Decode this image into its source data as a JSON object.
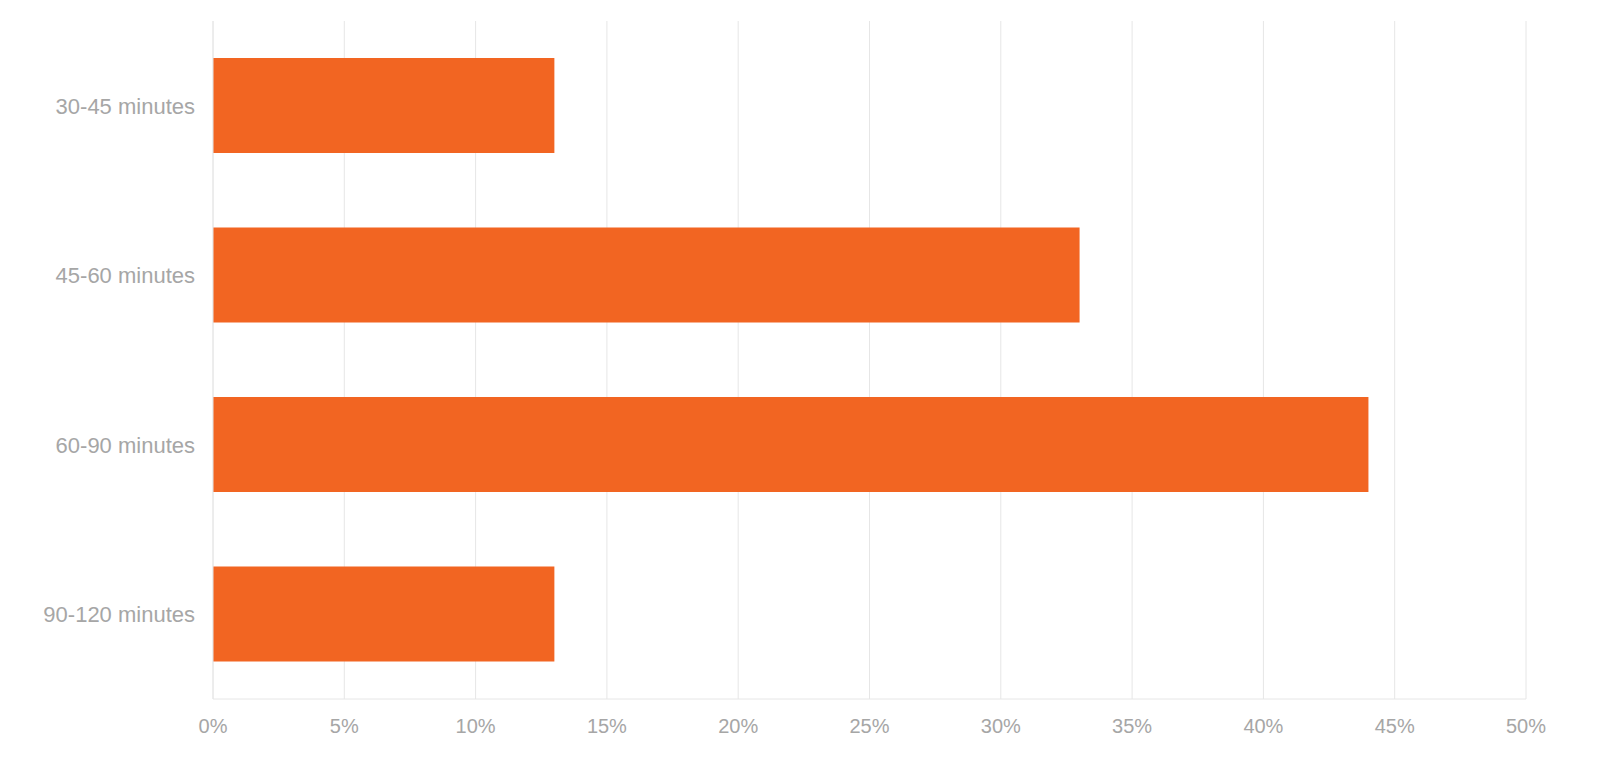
{
  "chart_data": {
    "type": "bar",
    "orientation": "horizontal",
    "categories": [
      "30-45 minutes",
      "45-60 minutes",
      "60-90 minutes",
      "90-120 minutes"
    ],
    "values": [
      13,
      33,
      44,
      13
    ],
    "color": "#f26522",
    "xlim": [
      0,
      50
    ],
    "xticks": [
      {
        "value": 0,
        "label": "0%"
      },
      {
        "value": 5,
        "label": "5%"
      },
      {
        "value": 10,
        "label": "10%"
      },
      {
        "value": 15,
        "label": "15%"
      },
      {
        "value": 20,
        "label": "20%"
      },
      {
        "value": 25,
        "label": "25%"
      },
      {
        "value": 30,
        "label": "30%"
      },
      {
        "value": 35,
        "label": "35%"
      },
      {
        "value": 40,
        "label": "40%"
      },
      {
        "value": 45,
        "label": "45%"
      },
      {
        "value": 50,
        "label": "50%"
      }
    ],
    "grid": true
  }
}
